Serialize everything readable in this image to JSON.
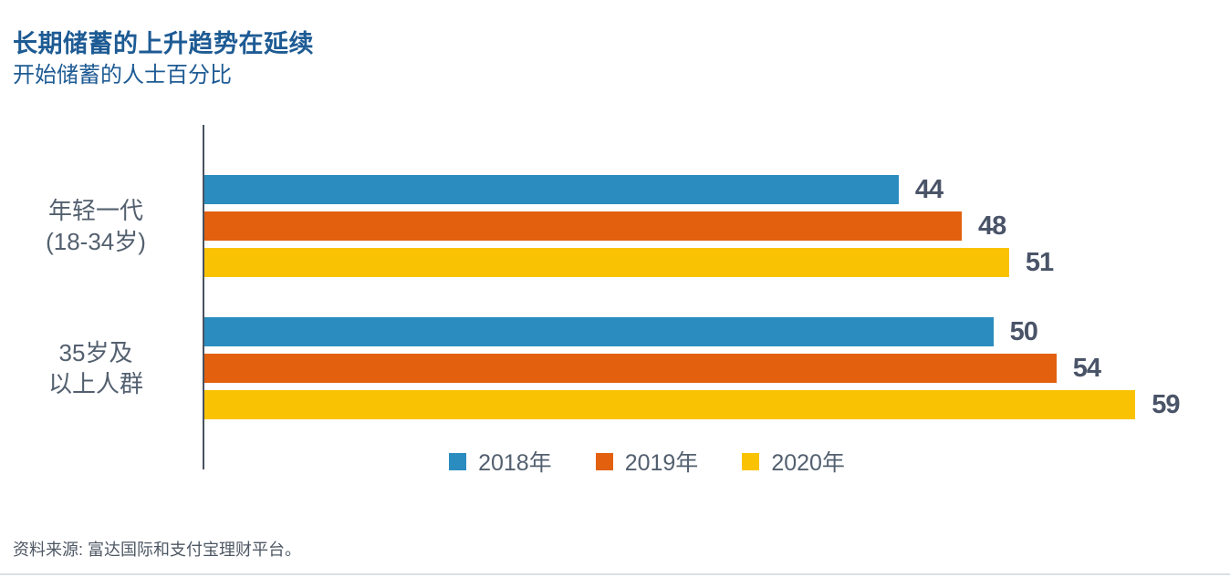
{
  "chart_data": {
    "type": "bar",
    "orientation": "horizontal",
    "title": "长期储蓄的上升趋势在延续",
    "subtitle": "开始储蓄的人士百分比",
    "categories": [
      [
        "年轻一代",
        "(18-34岁)"
      ],
      [
        "35岁及",
        "以上人群"
      ]
    ],
    "series": [
      {
        "name": "2018年",
        "color": "#2A8CBF",
        "values": [
          44,
          50
        ]
      },
      {
        "name": "2019年",
        "color": "#E2600E",
        "values": [
          48,
          54
        ]
      },
      {
        "name": "2020年",
        "color": "#F9C303",
        "values": [
          51,
          59
        ]
      }
    ],
    "xlim": [
      0,
      65
    ],
    "value_labels": true,
    "grid": false,
    "legend_position": "bottom-center",
    "xlabel": "",
    "ylabel": ""
  },
  "footer": {
    "source": "资料来源: 富达国际和支付宝理财平台。"
  },
  "colors": {
    "title": "#1E5B94",
    "category_text": "#53606F",
    "value_text": "#4A5468",
    "legend_text": "#53606F",
    "source_text": "#4E5864",
    "axis_line": "#485260",
    "bottom_rule": "#DCE0E5"
  }
}
